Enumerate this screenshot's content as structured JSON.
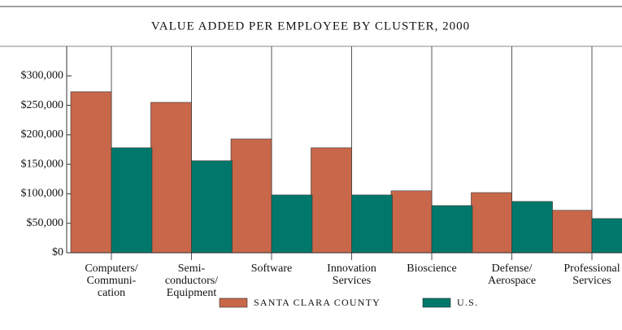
{
  "chart_data": {
    "type": "bar",
    "title": "VALUE ADDED PER EMPLOYEE BY CLUSTER, 2000",
    "categories": [
      "Computers/\nCommuni-\ncation",
      "Semi-\nconductors/\nEquipment",
      "Software",
      "Innovation\nServices",
      "Bioscience",
      "Defense/\nAerospace",
      "Professional\nServices"
    ],
    "series": [
      {
        "name": "SANTA CLARA COUNTY",
        "color": "#c8674a",
        "values": [
          273000,
          255000,
          193000,
          178000,
          105000,
          102000,
          72000
        ]
      },
      {
        "name": "U.S.",
        "color": "#00776b",
        "values": [
          178000,
          156000,
          98000,
          98000,
          80000,
          87000,
          58000
        ]
      }
    ],
    "ylim": [
      0,
      350000
    ],
    "yticks": [
      {
        "value": 0,
        "label": "$0"
      },
      {
        "value": 50000,
        "label": "$50,000"
      },
      {
        "value": 100000,
        "label": "$100,000"
      },
      {
        "value": 150000,
        "label": "$150,000"
      },
      {
        "value": 200000,
        "label": "$200,000"
      },
      {
        "value": 250000,
        "label": "$250,000"
      },
      {
        "value": 300000,
        "label": "$300,000"
      }
    ]
  }
}
